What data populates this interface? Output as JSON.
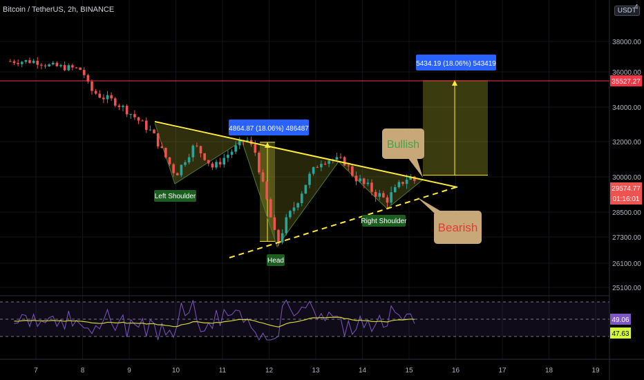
{
  "header": {
    "symbol_title": "Bitcoin / TetherUS, 2h, BINANCE",
    "currency_badge": "USDT",
    "top_clipped_label": "4"
  },
  "price_axis": {
    "labels": [
      "38000.00",
      "36000.00",
      "34000.00",
      "32000.00",
      "30000.00",
      "28500.00",
      "27300.00",
      "26100.00",
      "25100.00"
    ],
    "resistance_label": "35527.27",
    "last_price_label": "29574.77",
    "countdown_label": "01:16:01"
  },
  "time_axis": {
    "labels": [
      "7",
      "8",
      "9",
      "10",
      "11",
      "12",
      "13",
      "14",
      "15",
      "16",
      "17",
      "18",
      "19"
    ]
  },
  "annotations": {
    "left_shoulder": "Left Shoulder",
    "head": "Head",
    "right_shoulder": "Right Shoulder",
    "bullish": "Bullish",
    "bearish": "Bearish",
    "measure_1": "4864.87 (18.06%) 486487",
    "measure_2": "5434.19 (18.06%) 543419"
  },
  "rsi": {
    "value_label": "49.06",
    "ma_label": "47.63"
  },
  "colors": {
    "background": "#000000",
    "up": "#26a69a",
    "down": "#ef5350",
    "trendline": "#ffeb3b",
    "resistance": "#f23645",
    "measure": "#2962ff",
    "rsi_line": "#7e57c2",
    "rsi_ma": "#d4d43a"
  },
  "chart_data": {
    "type": "candlestick",
    "title": "Bitcoin / TetherUS, 2h, BINANCE",
    "x_ticks": [
      "7",
      "8",
      "9",
      "10",
      "11",
      "12",
      "13",
      "14",
      "15",
      "16",
      "17",
      "18",
      "19"
    ],
    "y_ticks": [
      25100,
      26100,
      27300,
      28500,
      30000,
      32000,
      34000,
      36000,
      38000
    ],
    "close_path": [
      {
        "day": 7.0,
        "price": 36700
      },
      {
        "day": 7.3,
        "price": 36400
      },
      {
        "day": 7.6,
        "price": 36300
      },
      {
        "day": 7.9,
        "price": 36200
      },
      {
        "day": 8.0,
        "price": 36100
      },
      {
        "day": 8.15,
        "price": 35000
      },
      {
        "day": 8.4,
        "price": 34600
      },
      {
        "day": 8.7,
        "price": 34300
      },
      {
        "day": 9.0,
        "price": 33700
      },
      {
        "day": 9.3,
        "price": 33000
      },
      {
        "day": 9.5,
        "price": 32500
      },
      {
        "day": 9.7,
        "price": 31500
      },
      {
        "day": 9.85,
        "price": 30800
      },
      {
        "day": 10.0,
        "price": 30100
      },
      {
        "day": 10.2,
        "price": 31000
      },
      {
        "day": 10.4,
        "price": 31800
      },
      {
        "day": 10.6,
        "price": 31200
      },
      {
        "day": 10.8,
        "price": 30500
      },
      {
        "day": 11.0,
        "price": 31000
      },
      {
        "day": 11.3,
        "price": 31700
      },
      {
        "day": 11.5,
        "price": 32200
      },
      {
        "day": 11.7,
        "price": 31400
      },
      {
        "day": 11.85,
        "price": 29700
      },
      {
        "day": 12.0,
        "price": 28600
      },
      {
        "day": 12.1,
        "price": 27500
      },
      {
        "day": 12.2,
        "price": 27100
      },
      {
        "day": 12.35,
        "price": 28000
      },
      {
        "day": 12.6,
        "price": 29000
      },
      {
        "day": 12.9,
        "price": 30200
      },
      {
        "day": 13.1,
        "price": 30900
      },
      {
        "day": 13.3,
        "price": 31000
      },
      {
        "day": 13.6,
        "price": 30900
      },
      {
        "day": 13.8,
        "price": 30100
      },
      {
        "day": 14.0,
        "price": 29700
      },
      {
        "day": 14.3,
        "price": 29300
      },
      {
        "day": 14.5,
        "price": 29000
      },
      {
        "day": 14.7,
        "price": 29400
      },
      {
        "day": 14.9,
        "price": 29900
      },
      {
        "day": 15.0,
        "price": 30000
      },
      {
        "day": 15.1,
        "price": 29900
      },
      {
        "day": 15.2,
        "price": 29575
      }
    ],
    "resistance_level": 35527.27,
    "last_price": 29574.77,
    "measure_moves": [
      {
        "label": "4864.87 (18.06%) 486487",
        "from": 27100,
        "to": 31965
      },
      {
        "label": "5434.19 (18.06%) 543419",
        "from": 30093,
        "to": 35527
      }
    ],
    "rsi_last": 49.06,
    "rsi_ma_last": 47.63
  }
}
